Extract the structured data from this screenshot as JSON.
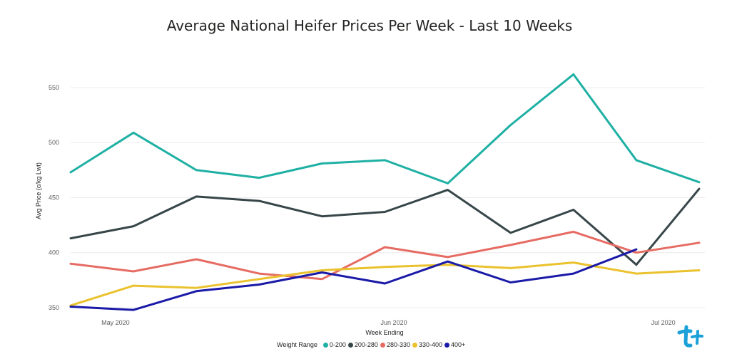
{
  "chart_data": {
    "type": "line",
    "title": "Average National Heifer Prices Per Week - Last 10 Weeks",
    "xlabel": "Week Ending",
    "ylabel": "Avg Price (c/kg Lwt)",
    "ylim": [
      350,
      570
    ],
    "yticks": [
      350,
      400,
      450,
      500,
      550
    ],
    "xticks": [
      "May 2020",
      "Jun 2020",
      "Jul 2020"
    ],
    "x": [
      "2020-04-26",
      "2020-05-03",
      "2020-05-10",
      "2020-05-17",
      "2020-05-24",
      "2020-05-31",
      "2020-06-07",
      "2020-06-14",
      "2020-06-21",
      "2020-06-28",
      "2020-07-05"
    ],
    "grid": true,
    "legend_title": "Weight Range",
    "legend_position": "bottom",
    "series": [
      {
        "name": "0-200",
        "color": "#1fb0a4",
        "x": [
          "2020-04-26",
          "2020-05-03",
          "2020-05-10",
          "2020-05-17",
          "2020-05-24",
          "2020-05-31",
          "2020-06-07",
          "2020-06-14",
          "2020-06-21",
          "2020-06-28",
          "2020-07-05"
        ],
        "values": [
          473,
          509,
          475,
          468,
          481,
          484,
          463,
          516,
          562,
          484,
          464
        ]
      },
      {
        "name": "200-280",
        "color": "#374649",
        "x": [
          "2020-04-26",
          "2020-05-03",
          "2020-05-10",
          "2020-05-17",
          "2020-05-24",
          "2020-05-31",
          "2020-06-07",
          "2020-06-14",
          "2020-06-21",
          "2020-06-28",
          "2020-07-05"
        ],
        "values": [
          413,
          424,
          451,
          447,
          433,
          437,
          457,
          418,
          439,
          389,
          458
        ]
      },
      {
        "name": "280-330",
        "color": "#e66c63",
        "x": [
          "2020-04-26",
          "2020-05-03",
          "2020-05-10",
          "2020-05-17",
          "2020-05-24",
          "2020-05-31",
          "2020-06-07",
          "2020-06-14",
          "2020-06-21",
          "2020-06-28",
          "2020-07-05"
        ],
        "values": [
          390,
          383,
          394,
          381,
          376,
          405,
          396,
          407,
          419,
          400,
          409
        ]
      },
      {
        "name": "330-400",
        "color": "#eac22d",
        "x": [
          "2020-04-26",
          "2020-05-03",
          "2020-05-10",
          "2020-05-17",
          "2020-05-24",
          "2020-05-31",
          "2020-06-07",
          "2020-06-14",
          "2020-06-21",
          "2020-06-28",
          "2020-07-05"
        ],
        "values": [
          352,
          370,
          368,
          376,
          384,
          387,
          389,
          386,
          391,
          381,
          384
        ]
      },
      {
        "name": "400+",
        "color": "#1a1aa8",
        "x": [
          "2020-04-26",
          "2020-05-03",
          "2020-05-10",
          "2020-05-17",
          "2020-05-24",
          "2020-05-31",
          "2020-06-07",
          "2020-06-14",
          "2020-06-21",
          "2020-06-28"
        ],
        "values": [
          351,
          348,
          365,
          371,
          382,
          372,
          392,
          373,
          381,
          403
        ]
      }
    ]
  }
}
